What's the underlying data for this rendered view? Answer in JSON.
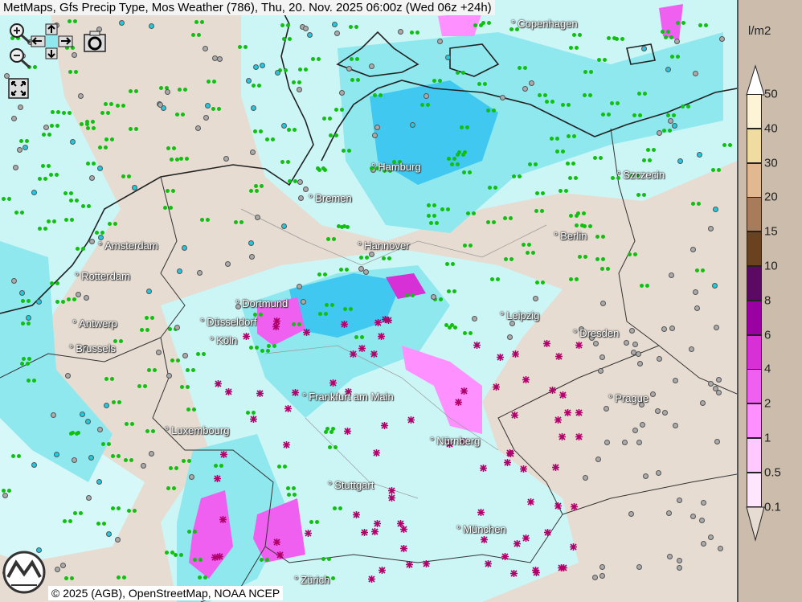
{
  "title": "MetMaps, Gfs Precip Type, Mos Weather (786), Thu, 20. Nov. 2025 06:00z (Wed 06z +24h)",
  "toolbar": {
    "zoom_in": "zoom-in-icon",
    "zoom_out": "zoom-out-icon",
    "pan": "pan-arrows-icon",
    "screenshot": "camera-icon",
    "fullscreen": "fullscreen-icon"
  },
  "cities": [
    "Copenhagen",
    "Hamburg",
    "Szczecin",
    "Bremen",
    "Amsterdam",
    "Hannover",
    "Berlin",
    "Rotterdam",
    "Dortmund",
    "Leipzig",
    "Antwerp",
    "Düsseldorf",
    "Dresden",
    "Brussels",
    "Köln",
    "Prague",
    "Frankfurt am Main",
    "Luxembourg",
    "Nürnberg",
    "Stuttgart",
    "München",
    "Zürich"
  ],
  "legend": {
    "unit": "l/m2",
    "labels": [
      "50",
      "40",
      "30",
      "20",
      "15",
      "10",
      "8",
      "6",
      "4",
      "2",
      "1",
      "0.5",
      "0.1"
    ],
    "colors": [
      "#fdf4d8",
      "#f0dba0",
      "#e2b890",
      "#a87c5a",
      "#6a4220",
      "#5a0a62",
      "#9a00a2",
      "#d630d6",
      "#f060f0",
      "#ff90ff",
      "#ffc8ff",
      "#ffe6ff"
    ]
  },
  "colors": {
    "land": "#e6dcd2",
    "rain_light": "#ccf6f6",
    "rain": "#8ee8ee",
    "rain_heavy": "#40c8f0",
    "snow": "#f060f0"
  },
  "logo_text": "METMAPS",
  "footer": "© 2025 (AGB), OpenStreetMap, NOAA NCEP"
}
